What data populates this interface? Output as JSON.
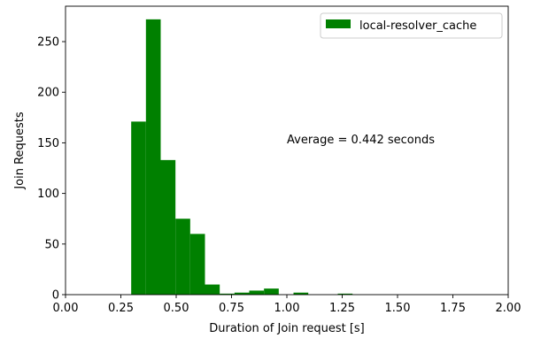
{
  "chart_data": {
    "type": "bar",
    "title": "",
    "xlabel": "Duration of Join request [s]",
    "ylabel": "Join Requests",
    "xlim": [
      0,
      2.0
    ],
    "ylim": [
      0,
      285
    ],
    "x_ticks": [
      0,
      0.25,
      0.5,
      0.75,
      1.0,
      1.25,
      1.5,
      1.75,
      2.0
    ],
    "x_tick_labels": [
      "0.00",
      "0.25",
      "0.50",
      "0.75",
      "1.00",
      "1.25",
      "1.50",
      "1.75",
      "2.00"
    ],
    "y_ticks": [
      0,
      50,
      100,
      150,
      200,
      250
    ],
    "y_tick_labels": [
      "0",
      "50",
      "100",
      "150",
      "200",
      "250"
    ],
    "grid": false,
    "legend_position": "top-right",
    "color": "#008000",
    "annotation": "Average = 0.442 seconds",
    "bin_width": 0.0667,
    "series": [
      {
        "name": "local-resolver_cache",
        "bins": [
          {
            "start": 0.2967,
            "end": 0.3633,
            "count": 171
          },
          {
            "start": 0.3633,
            "end": 0.43,
            "count": 272
          },
          {
            "start": 0.43,
            "end": 0.4967,
            "count": 133
          },
          {
            "start": 0.4967,
            "end": 0.5633,
            "count": 75
          },
          {
            "start": 0.5633,
            "end": 0.63,
            "count": 60
          },
          {
            "start": 0.63,
            "end": 0.6967,
            "count": 10
          },
          {
            "start": 0.6967,
            "end": 0.7633,
            "count": 1
          },
          {
            "start": 0.7633,
            "end": 0.83,
            "count": 2
          },
          {
            "start": 0.83,
            "end": 0.8967,
            "count": 4
          },
          {
            "start": 0.8967,
            "end": 0.9633,
            "count": 6
          },
          {
            "start": 0.9633,
            "end": 1.03,
            "count": 0
          },
          {
            "start": 1.03,
            "end": 1.0967,
            "count": 2
          },
          {
            "start": 1.0967,
            "end": 1.1633,
            "count": 0
          },
          {
            "start": 1.1633,
            "end": 1.23,
            "count": 0
          },
          {
            "start": 1.23,
            "end": 1.2967,
            "count": 1
          }
        ]
      }
    ]
  }
}
